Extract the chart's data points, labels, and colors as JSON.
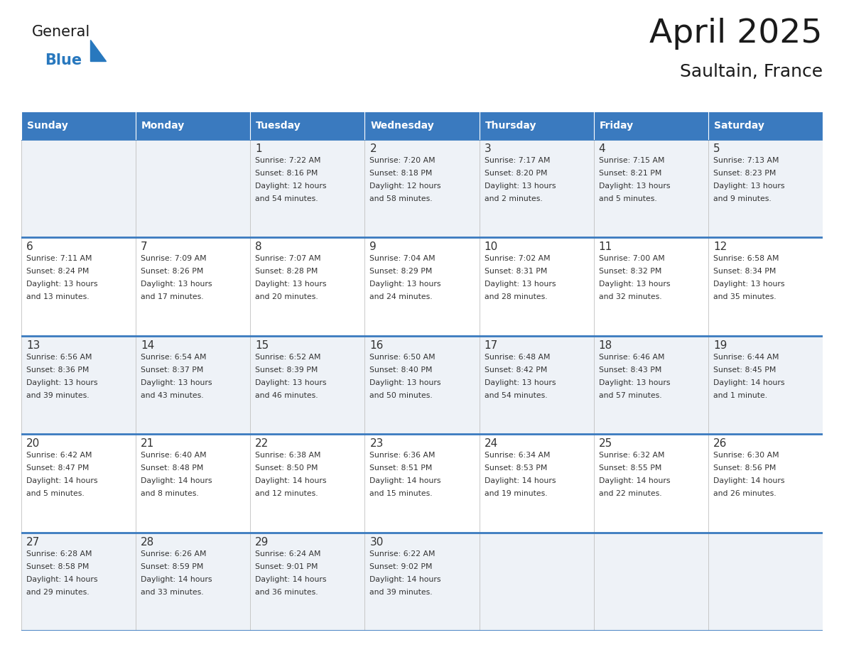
{
  "title": "April 2025",
  "subtitle": "Saultain, France",
  "header_color": "#3a7abf",
  "header_text_color": "#ffffff",
  "cell_bg_even": "#eef2f7",
  "cell_bg_odd": "#ffffff",
  "text_color": "#333333",
  "days_of_week": [
    "Sunday",
    "Monday",
    "Tuesday",
    "Wednesday",
    "Thursday",
    "Friday",
    "Saturday"
  ],
  "calendar_data": [
    [
      {
        "day": "",
        "sunrise": "",
        "sunset": "",
        "daylight": ""
      },
      {
        "day": "",
        "sunrise": "",
        "sunset": "",
        "daylight": ""
      },
      {
        "day": "1",
        "sunrise": "Sunrise: 7:22 AM",
        "sunset": "Sunset: 8:16 PM",
        "daylight": "Daylight: 12 hours\nand 54 minutes."
      },
      {
        "day": "2",
        "sunrise": "Sunrise: 7:20 AM",
        "sunset": "Sunset: 8:18 PM",
        "daylight": "Daylight: 12 hours\nand 58 minutes."
      },
      {
        "day": "3",
        "sunrise": "Sunrise: 7:17 AM",
        "sunset": "Sunset: 8:20 PM",
        "daylight": "Daylight: 13 hours\nand 2 minutes."
      },
      {
        "day": "4",
        "sunrise": "Sunrise: 7:15 AM",
        "sunset": "Sunset: 8:21 PM",
        "daylight": "Daylight: 13 hours\nand 5 minutes."
      },
      {
        "day": "5",
        "sunrise": "Sunrise: 7:13 AM",
        "sunset": "Sunset: 8:23 PM",
        "daylight": "Daylight: 13 hours\nand 9 minutes."
      }
    ],
    [
      {
        "day": "6",
        "sunrise": "Sunrise: 7:11 AM",
        "sunset": "Sunset: 8:24 PM",
        "daylight": "Daylight: 13 hours\nand 13 minutes."
      },
      {
        "day": "7",
        "sunrise": "Sunrise: 7:09 AM",
        "sunset": "Sunset: 8:26 PM",
        "daylight": "Daylight: 13 hours\nand 17 minutes."
      },
      {
        "day": "8",
        "sunrise": "Sunrise: 7:07 AM",
        "sunset": "Sunset: 8:28 PM",
        "daylight": "Daylight: 13 hours\nand 20 minutes."
      },
      {
        "day": "9",
        "sunrise": "Sunrise: 7:04 AM",
        "sunset": "Sunset: 8:29 PM",
        "daylight": "Daylight: 13 hours\nand 24 minutes."
      },
      {
        "day": "10",
        "sunrise": "Sunrise: 7:02 AM",
        "sunset": "Sunset: 8:31 PM",
        "daylight": "Daylight: 13 hours\nand 28 minutes."
      },
      {
        "day": "11",
        "sunrise": "Sunrise: 7:00 AM",
        "sunset": "Sunset: 8:32 PM",
        "daylight": "Daylight: 13 hours\nand 32 minutes."
      },
      {
        "day": "12",
        "sunrise": "Sunrise: 6:58 AM",
        "sunset": "Sunset: 8:34 PM",
        "daylight": "Daylight: 13 hours\nand 35 minutes."
      }
    ],
    [
      {
        "day": "13",
        "sunrise": "Sunrise: 6:56 AM",
        "sunset": "Sunset: 8:36 PM",
        "daylight": "Daylight: 13 hours\nand 39 minutes."
      },
      {
        "day": "14",
        "sunrise": "Sunrise: 6:54 AM",
        "sunset": "Sunset: 8:37 PM",
        "daylight": "Daylight: 13 hours\nand 43 minutes."
      },
      {
        "day": "15",
        "sunrise": "Sunrise: 6:52 AM",
        "sunset": "Sunset: 8:39 PM",
        "daylight": "Daylight: 13 hours\nand 46 minutes."
      },
      {
        "day": "16",
        "sunrise": "Sunrise: 6:50 AM",
        "sunset": "Sunset: 8:40 PM",
        "daylight": "Daylight: 13 hours\nand 50 minutes."
      },
      {
        "day": "17",
        "sunrise": "Sunrise: 6:48 AM",
        "sunset": "Sunset: 8:42 PM",
        "daylight": "Daylight: 13 hours\nand 54 minutes."
      },
      {
        "day": "18",
        "sunrise": "Sunrise: 6:46 AM",
        "sunset": "Sunset: 8:43 PM",
        "daylight": "Daylight: 13 hours\nand 57 minutes."
      },
      {
        "day": "19",
        "sunrise": "Sunrise: 6:44 AM",
        "sunset": "Sunset: 8:45 PM",
        "daylight": "Daylight: 14 hours\nand 1 minute."
      }
    ],
    [
      {
        "day": "20",
        "sunrise": "Sunrise: 6:42 AM",
        "sunset": "Sunset: 8:47 PM",
        "daylight": "Daylight: 14 hours\nand 5 minutes."
      },
      {
        "day": "21",
        "sunrise": "Sunrise: 6:40 AM",
        "sunset": "Sunset: 8:48 PM",
        "daylight": "Daylight: 14 hours\nand 8 minutes."
      },
      {
        "day": "22",
        "sunrise": "Sunrise: 6:38 AM",
        "sunset": "Sunset: 8:50 PM",
        "daylight": "Daylight: 14 hours\nand 12 minutes."
      },
      {
        "day": "23",
        "sunrise": "Sunrise: 6:36 AM",
        "sunset": "Sunset: 8:51 PM",
        "daylight": "Daylight: 14 hours\nand 15 minutes."
      },
      {
        "day": "24",
        "sunrise": "Sunrise: 6:34 AM",
        "sunset": "Sunset: 8:53 PM",
        "daylight": "Daylight: 14 hours\nand 19 minutes."
      },
      {
        "day": "25",
        "sunrise": "Sunrise: 6:32 AM",
        "sunset": "Sunset: 8:55 PM",
        "daylight": "Daylight: 14 hours\nand 22 minutes."
      },
      {
        "day": "26",
        "sunrise": "Sunrise: 6:30 AM",
        "sunset": "Sunset: 8:56 PM",
        "daylight": "Daylight: 14 hours\nand 26 minutes."
      }
    ],
    [
      {
        "day": "27",
        "sunrise": "Sunrise: 6:28 AM",
        "sunset": "Sunset: 8:58 PM",
        "daylight": "Daylight: 14 hours\nand 29 minutes."
      },
      {
        "day": "28",
        "sunrise": "Sunrise: 6:26 AM",
        "sunset": "Sunset: 8:59 PM",
        "daylight": "Daylight: 14 hours\nand 33 minutes."
      },
      {
        "day": "29",
        "sunrise": "Sunrise: 6:24 AM",
        "sunset": "Sunset: 9:01 PM",
        "daylight": "Daylight: 14 hours\nand 36 minutes."
      },
      {
        "day": "30",
        "sunrise": "Sunrise: 6:22 AM",
        "sunset": "Sunset: 9:02 PM",
        "daylight": "Daylight: 14 hours\nand 39 minutes."
      },
      {
        "day": "",
        "sunrise": "",
        "sunset": "",
        "daylight": ""
      },
      {
        "day": "",
        "sunrise": "",
        "sunset": "",
        "daylight": ""
      },
      {
        "day": "",
        "sunrise": "",
        "sunset": "",
        "daylight": ""
      }
    ]
  ],
  "logo_blue_color": "#2878be",
  "fig_width": 11.88,
  "fig_height": 9.18,
  "dpi": 100
}
